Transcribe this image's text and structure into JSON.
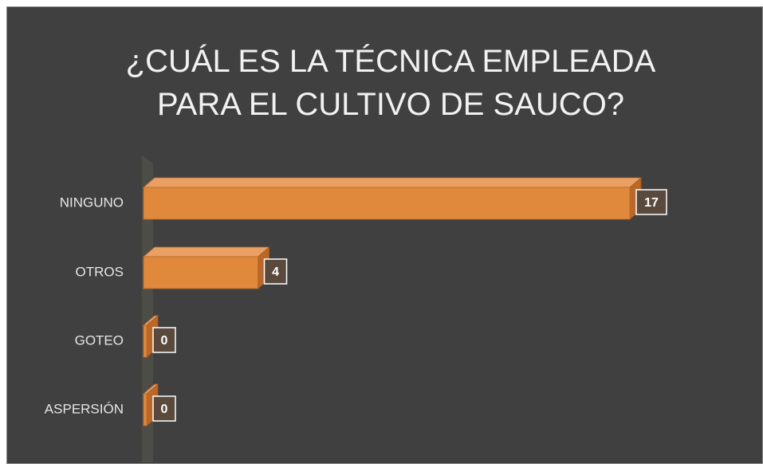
{
  "chart_data": {
    "type": "bar",
    "orientation": "horizontal",
    "title": "¿CUÁL ES LA TÉCNICA EMPLEADA PARA EL CULTIVO DE SAUCO?",
    "categories": [
      "NINGUNO",
      "OTROS",
      "GOTEO",
      "ASPERSIÓN"
    ],
    "values": [
      17,
      4,
      0,
      0
    ],
    "color": "#e0893c"
  }
}
